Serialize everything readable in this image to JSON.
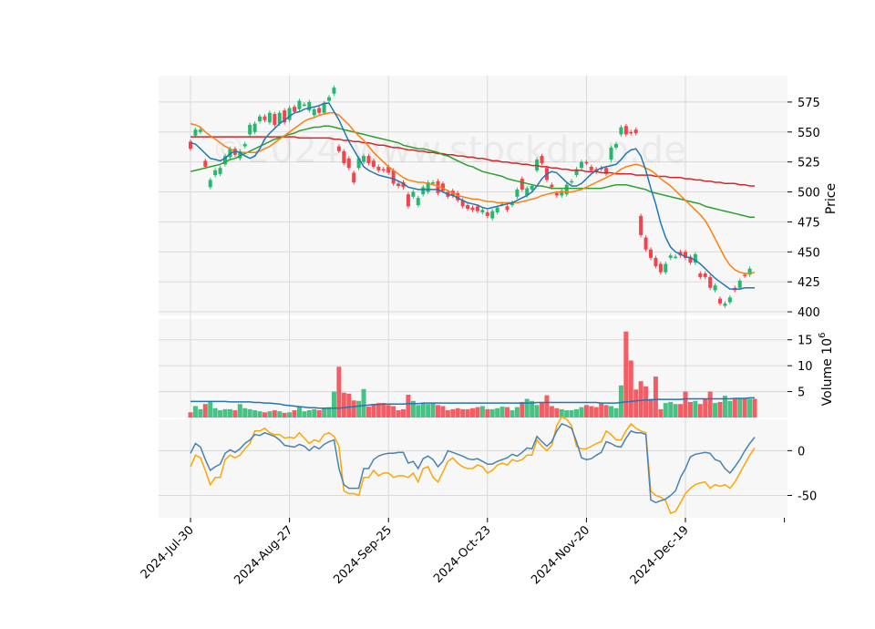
{
  "chart_data": {
    "type": "candlestick",
    "watermark": "©2024 www.stockdrop.de",
    "x_tick_labels": [
      "2024-Jul-30",
      "2024-Aug-27",
      "2024-Sep-25",
      "2024-Oct-23",
      "2024-Nov-20",
      "2024-Dec-19"
    ],
    "colors": {
      "up": "#26b870",
      "down": "#f5424b",
      "panel_bg": "#f7f7f7",
      "grid": "#d9d9d9"
    },
    "price_panel": {
      "ylabel": "Price",
      "ylim": [
        397,
        597
      ],
      "yticks": [
        400,
        425,
        450,
        475,
        500,
        525,
        550,
        575
      ],
      "candles": [
        [
          542,
          536
        ],
        [
          547,
          552
        ],
        [
          550,
          552
        ],
        [
          526,
          521
        ],
        [
          504,
          510
        ],
        [
          514,
          518
        ],
        [
          515,
          520
        ],
        [
          523,
          530
        ],
        [
          529,
          536
        ],
        [
          536,
          531
        ],
        [
          528,
          534
        ],
        [
          538,
          540
        ],
        [
          548,
          556
        ],
        [
          550,
          557
        ],
        [
          559,
          563
        ],
        [
          563,
          560
        ],
        [
          558,
          566
        ],
        [
          565,
          556
        ],
        [
          557,
          566
        ],
        [
          568,
          558
        ],
        [
          560,
          570
        ],
        [
          571,
          567
        ],
        [
          569,
          576
        ],
        [
          573,
          573
        ],
        [
          568,
          575
        ],
        [
          564,
          569
        ],
        [
          570,
          566
        ],
        [
          566,
          574
        ],
        [
          576,
          579
        ],
        [
          582,
          587
        ],
        [
          538,
          534
        ],
        [
          534,
          524
        ],
        [
          528,
          520
        ],
        [
          516,
          508
        ],
        [
          520,
          528
        ],
        [
          525,
          530
        ],
        [
          530,
          524
        ],
        [
          526,
          521
        ],
        [
          521,
          518
        ],
        [
          519,
          518
        ],
        [
          521,
          516
        ],
        [
          518,
          507
        ],
        [
          507,
          505
        ],
        [
          508,
          504
        ],
        [
          498,
          488
        ],
        [
          496,
          500
        ],
        [
          489,
          495
        ],
        [
          498,
          504
        ],
        [
          500,
          508
        ],
        [
          508,
          508
        ],
        [
          509,
          499
        ],
        [
          507,
          501
        ],
        [
          500,
          496
        ],
        [
          501,
          497
        ],
        [
          499,
          493
        ],
        [
          493,
          488
        ],
        [
          489,
          486
        ],
        [
          487,
          485
        ],
        [
          488,
          484
        ],
        [
          483,
          485
        ],
        [
          483,
          480
        ],
        [
          478,
          484
        ],
        [
          483,
          487
        ],
        [
          490,
          490
        ],
        [
          488,
          485
        ],
        [
          489,
          491
        ],
        [
          496,
          502
        ],
        [
          511,
          502
        ],
        [
          497,
          503
        ],
        [
          502,
          505
        ],
        [
          518,
          527
        ],
        [
          530,
          524
        ],
        [
          520,
          510
        ],
        [
          506,
          504
        ],
        [
          499,
          497
        ],
        [
          497,
          501
        ],
        [
          498,
          506
        ],
        [
          508,
          509
        ],
        [
          514,
          519
        ],
        [
          520,
          525
        ],
        [
          525,
          524
        ],
        [
          521,
          518
        ],
        [
          519,
          517
        ],
        [
          520,
          519
        ],
        [
          520,
          515
        ],
        [
          527,
          537
        ],
        [
          537,
          540
        ],
        [
          548,
          554
        ],
        [
          555,
          548
        ],
        [
          550,
          549
        ],
        [
          552,
          549
        ],
        [
          480,
          464
        ],
        [
          462,
          452
        ],
        [
          452,
          445
        ],
        [
          445,
          438
        ],
        [
          440,
          433
        ],
        [
          433,
          440
        ],
        [
          445,
          447
        ],
        [
          446,
          446
        ],
        [
          450,
          447
        ],
        [
          450,
          445
        ],
        [
          446,
          441
        ],
        [
          441,
          448
        ],
        [
          432,
          429
        ],
        [
          432,
          429
        ],
        [
          429,
          420
        ],
        [
          418,
          422
        ],
        [
          411,
          407
        ],
        [
          405,
          407
        ],
        [
          408,
          412
        ],
        [
          420,
          418
        ],
        [
          420,
          426
        ],
        [
          431,
          430
        ],
        [
          431,
          436
        ]
      ],
      "ma_short": [
        541,
        540,
        536,
        532,
        528,
        527,
        526,
        528,
        532,
        534,
        533,
        530,
        528,
        530,
        536,
        544,
        549,
        553,
        557,
        560,
        563,
        566,
        567,
        569,
        570,
        571,
        572,
        574,
        574,
        567,
        560,
        551,
        542,
        535,
        528,
        521,
        518,
        516,
        514,
        513,
        512,
        511,
        509,
        507,
        504,
        503,
        502,
        502,
        502,
        502,
        502,
        500,
        498,
        497,
        495,
        493,
        491,
        490,
        489,
        487,
        486,
        487,
        488,
        489,
        490,
        491,
        493,
        495,
        497,
        500,
        505,
        511,
        515,
        517,
        516,
        512,
        508,
        505,
        505,
        507,
        511,
        515,
        518,
        520,
        521,
        522,
        523,
        527,
        532,
        535,
        536,
        530,
        518,
        503,
        490,
        474,
        462,
        454,
        450,
        448,
        446,
        445,
        443,
        440,
        436,
        432,
        428,
        425,
        422,
        419,
        419,
        419,
        420,
        420,
        420
      ],
      "ma_mid": [
        557,
        556,
        554,
        550,
        547,
        544,
        541,
        538,
        536,
        534,
        533,
        533,
        533,
        533,
        534,
        536,
        538,
        541,
        544,
        547,
        550,
        553,
        556,
        559,
        561,
        562,
        564,
        565,
        566,
        566,
        564,
        560,
        556,
        551,
        547,
        543,
        538,
        533,
        529,
        525,
        521,
        518,
        515,
        512,
        510,
        509,
        508,
        508,
        507,
        506,
        505,
        503,
        501,
        499,
        497,
        496,
        495,
        494,
        494,
        493,
        492,
        492,
        491,
        491,
        491,
        491,
        491,
        492,
        493,
        494,
        495,
        497,
        498,
        499,
        500,
        500,
        500,
        500,
        501,
        502,
        504,
        506,
        508,
        510,
        512,
        514,
        516,
        519,
        521,
        522,
        523,
        522,
        520,
        518,
        515,
        511,
        508,
        505,
        501,
        497,
        493,
        489,
        485,
        481,
        476,
        469,
        461,
        453,
        445,
        439,
        435,
        433,
        432,
        432,
        433
      ],
      "ma_long": [
        517,
        518,
        519,
        520,
        521,
        522,
        523,
        525,
        527,
        528,
        530,
        532,
        534,
        536,
        538,
        540,
        542,
        544,
        545,
        547,
        548,
        549,
        551,
        552,
        553,
        554,
        554,
        555,
        555,
        554,
        553,
        552,
        551,
        550,
        549,
        548,
        547,
        546,
        545,
        544,
        543,
        542,
        541,
        539,
        538,
        537,
        536,
        536,
        535,
        534,
        533,
        531,
        530,
        528,
        526,
        524,
        522,
        521,
        519,
        517,
        516,
        515,
        514,
        513,
        511,
        510,
        509,
        508,
        507,
        506,
        505,
        505,
        504,
        503,
        503,
        503,
        503,
        503,
        503,
        503,
        503,
        503,
        503,
        503,
        504,
        505,
        506,
        506,
        506,
        505,
        504,
        503,
        502,
        500,
        499,
        498,
        497,
        496,
        495,
        494,
        493,
        492,
        491,
        490,
        488,
        487,
        486,
        485,
        484,
        483,
        482,
        481,
        480,
        479,
        479
      ],
      "ma_longest": [
        546,
        546,
        546,
        546,
        546,
        546,
        546,
        546,
        546,
        546,
        546,
        546,
        546,
        546,
        546,
        546,
        546,
        546,
        546,
        546,
        546,
        546,
        545,
        545,
        545,
        545,
        545,
        545,
        545,
        544,
        544,
        543,
        543,
        542,
        542,
        541,
        541,
        540,
        539,
        539,
        538,
        537,
        537,
        536,
        535,
        535,
        534,
        534,
        533,
        533,
        532,
        532,
        531,
        531,
        530,
        530,
        529,
        529,
        528,
        528,
        527,
        526,
        526,
        525,
        525,
        524,
        524,
        523,
        523,
        522,
        522,
        521,
        521,
        520,
        520,
        519,
        519,
        518,
        518,
        518,
        517,
        517,
        517,
        516,
        516,
        516,
        515,
        515,
        515,
        515,
        514,
        514,
        514,
        514,
        513,
        513,
        513,
        512,
        512,
        512,
        511,
        511,
        510,
        510,
        509,
        509,
        508,
        508,
        507,
        507,
        507,
        506,
        506,
        505,
        505
      ]
    },
    "volume_panel": {
      "ylabel": "Volume  10",
      "ylabel_exponent": "6",
      "ylim": [
        0,
        19
      ],
      "yticks": [
        5,
        10,
        15
      ],
      "volumes": [
        1.0,
        2.2,
        1.6,
        2.6,
        3.0,
        1.8,
        1.4,
        1.6,
        1.6,
        1.4,
        2.6,
        1.8,
        1.6,
        1.4,
        1.2,
        1.0,
        1.2,
        1.4,
        1.2,
        0.9,
        1.0,
        1.4,
        2.1,
        1.2,
        1.4,
        1.6,
        1.4,
        1.8,
        2.0,
        5.0,
        9.8,
        4.8,
        4.6,
        3.3,
        3.2,
        5.5,
        2.1,
        2.6,
        2.8,
        2.8,
        2.4,
        2.2,
        1.4,
        1.6,
        4.4,
        3.2,
        2.4,
        2.8,
        2.6,
        2.8,
        2.4,
        2.2,
        1.4,
        1.6,
        1.8,
        1.6,
        1.6,
        1.8,
        2.0,
        2.2,
        1.6,
        1.6,
        1.8,
        2.1,
        2.0,
        1.4,
        2.0,
        3.0,
        3.6,
        3.2,
        2.4,
        2.8,
        4.3,
        2.2,
        1.8,
        1.6,
        1.4,
        1.4,
        1.6,
        2.0,
        2.4,
        2.2,
        2.0,
        2.8,
        2.4,
        2.2,
        1.8,
        6.2,
        16.6,
        11.0,
        5.4,
        7.0,
        6.0,
        3.6,
        7.9,
        1.6,
        2.8,
        3.0,
        2.6,
        2.6,
        5.0,
        3.0,
        3.2,
        2.6,
        3.6,
        5.0,
        2.8,
        3.0,
        4.2,
        3.2,
        3.6,
        3.6,
        3.6,
        3.6,
        3.6
      ],
      "volume_ma": [
        3.1,
        3.1,
        3.1,
        3.1,
        3.1,
        3.1,
        3.1,
        3.1,
        3.0,
        3.0,
        3.0,
        3.0,
        3.0,
        2.9,
        2.9,
        2.8,
        2.8,
        2.7,
        2.6,
        2.4,
        2.3,
        2.2,
        2.1,
        2.0,
        1.9,
        1.9,
        1.8,
        1.8,
        1.8,
        1.8,
        1.8,
        1.9,
        2.0,
        2.1,
        2.2,
        2.3,
        2.4,
        2.5,
        2.5,
        2.6,
        2.6,
        2.6,
        2.6,
        2.6,
        2.7,
        2.7,
        2.7,
        2.8,
        2.8,
        2.8,
        2.8,
        2.8,
        2.8,
        2.8,
        2.8,
        2.8,
        2.8,
        2.8,
        2.8,
        2.8,
        2.8,
        2.8,
        2.8,
        2.8,
        2.8,
        2.8,
        2.8,
        2.8,
        2.8,
        2.8,
        2.9,
        2.9,
        2.9,
        2.9,
        2.9,
        2.9,
        2.9,
        2.9,
        2.9,
        2.9,
        2.9,
        2.9,
        2.9,
        2.8,
        2.8,
        2.8,
        2.8,
        2.9,
        3.0,
        3.1,
        3.2,
        3.3,
        3.4,
        3.4,
        3.5,
        3.5,
        3.5,
        3.5,
        3.5,
        3.5,
        3.6,
        3.6,
        3.6,
        3.6,
        3.6,
        3.6,
        3.6,
        3.6,
        3.6,
        3.6,
        3.7,
        3.7,
        3.7,
        3.8,
        3.8
      ]
    },
    "oscillator_panel": {
      "ylim": [
        -75,
        35
      ],
      "yticks": [
        -50,
        0
      ],
      "line_blue": [
        -3,
        8,
        4,
        -10,
        -22,
        -18,
        -15,
        -3,
        1,
        -2,
        2,
        8,
        12,
        18,
        17,
        20,
        18,
        16,
        12,
        6,
        5,
        4,
        7,
        5,
        0,
        5,
        2,
        7,
        10,
        12,
        -20,
        -38,
        -42,
        -42,
        -42,
        -20,
        -20,
        -10,
        -6,
        -4,
        -3,
        -3,
        -2,
        -2,
        -14,
        -12,
        -20,
        -9,
        -6,
        -10,
        -18,
        -12,
        0,
        -2,
        -4,
        -6,
        -9,
        -10,
        -9,
        -12,
        -15,
        -15,
        -12,
        -10,
        -8,
        -4,
        -6,
        -2,
        3,
        2,
        16,
        10,
        5,
        10,
        22,
        30,
        28,
        25,
        10,
        -8,
        -10,
        -9,
        -5,
        -2,
        10,
        8,
        5,
        4,
        14,
        22,
        20,
        20,
        18,
        -55,
        -58,
        -56,
        -54,
        -50,
        -45,
        -30,
        -20,
        -7,
        -4,
        -3,
        -2,
        -3,
        -10,
        -12,
        -20,
        -25,
        -18,
        -10,
        0,
        8,
        15
      ],
      "line_orange": [
        -18,
        -5,
        -8,
        -22,
        -38,
        -30,
        -30,
        -10,
        -5,
        -8,
        -5,
        2,
        8,
        22,
        22,
        25,
        20,
        18,
        18,
        14,
        15,
        14,
        20,
        14,
        8,
        12,
        10,
        18,
        20,
        16,
        5,
        -45,
        -48,
        -48,
        -50,
        -30,
        -30,
        -22,
        -28,
        -25,
        -25,
        -30,
        -28,
        -28,
        -30,
        -25,
        -35,
        -20,
        -18,
        -30,
        -35,
        -24,
        -12,
        -8,
        -14,
        -18,
        -20,
        -20,
        -16,
        -18,
        -25,
        -22,
        -16,
        -14,
        -16,
        -10,
        -12,
        -10,
        -5,
        -5,
        12,
        5,
        0,
        6,
        28,
        38,
        35,
        28,
        5,
        2,
        2,
        5,
        8,
        10,
        22,
        18,
        12,
        12,
        22,
        30,
        25,
        22,
        20,
        -45,
        -50,
        -52,
        -56,
        -70,
        -68,
        -58,
        -48,
        -42,
        -38,
        -36,
        -35,
        -42,
        -38,
        -40,
        -38,
        -42,
        -35,
        -25,
        -15,
        -5,
        3
      ]
    }
  }
}
